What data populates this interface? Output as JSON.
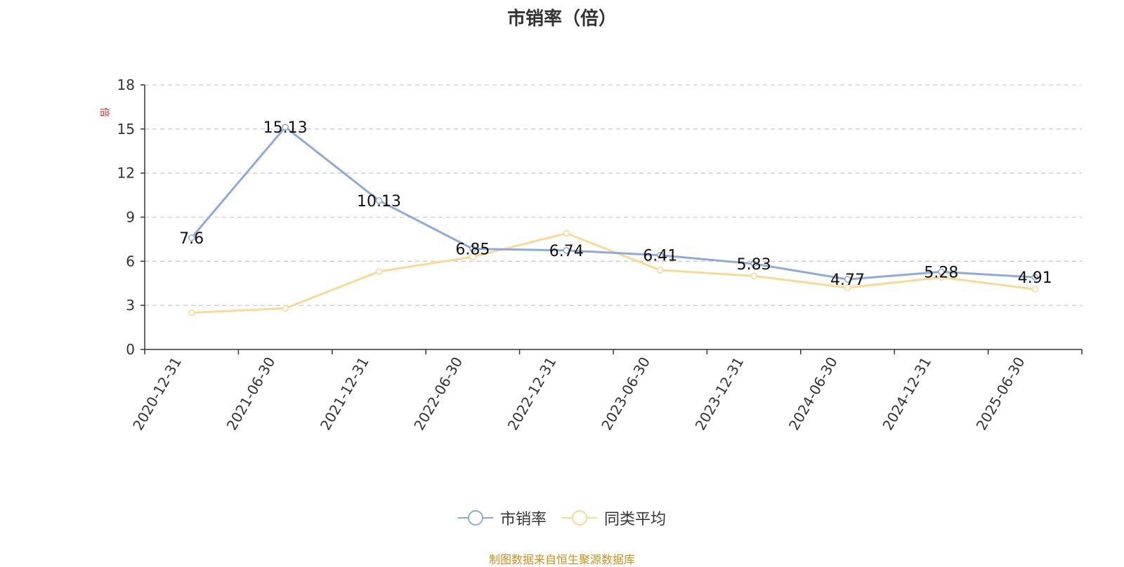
{
  "chart_data": {
    "type": "line",
    "title": "市销率（倍）",
    "ylabel": "倍",
    "categories": [
      "2020-12-31",
      "2021-06-30",
      "2021-12-31",
      "2022-06-30",
      "2022-12-31",
      "2023-06-30",
      "2023-12-31",
      "2024-06-30",
      "2024-12-31",
      "2025-06-30"
    ],
    "ylim": [
      0,
      18
    ],
    "yticks": [
      "0",
      "3",
      "6",
      "9",
      "12",
      "15",
      "18"
    ],
    "grid": true,
    "legend_position": "bottom",
    "series": [
      {
        "name": "市销率",
        "color": "#8eaad8",
        "values": [
          7.6,
          15.13,
          10.13,
          6.85,
          6.74,
          6.41,
          5.83,
          4.77,
          5.28,
          4.91
        ],
        "labels": [
          "7.6",
          "15.13",
          "10.13",
          "6.85",
          "6.74",
          "6.41",
          "5.83",
          "4.77",
          "5.28",
          "4.91"
        ]
      },
      {
        "name": "同类平均",
        "color": "#fbd895",
        "values": [
          2.5,
          2.8,
          5.3,
          6.3,
          7.9,
          5.4,
          5.0,
          4.2,
          4.9,
          4.1
        ]
      }
    ]
  },
  "footer": "制图数据来自恒生聚源数据库"
}
